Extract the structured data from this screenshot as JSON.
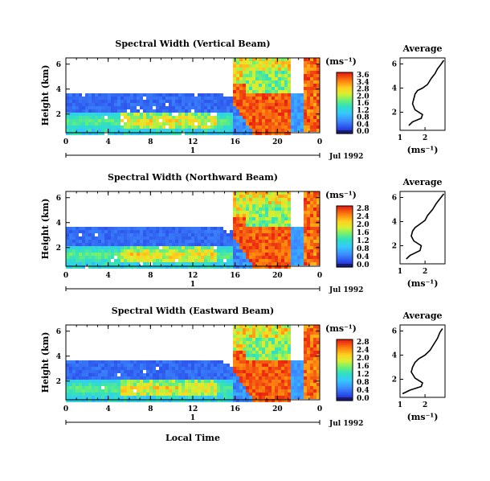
{
  "figure": {
    "xlabel": "Local Time",
    "date_label": "Jul 1992",
    "day_label": "1",
    "units_label": "(ms⁻¹)",
    "ylabel": "Height (km)",
    "avg_title": "Average",
    "avg_xlabel": "(ms⁻¹)"
  },
  "chart_data": [
    {
      "type": "heatmap",
      "title": "Spectral Width (Vertical Beam)",
      "x_ticks": [
        "0",
        "4",
        "8",
        "12",
        "16",
        "20",
        "0"
      ],
      "xlim": [
        0,
        24
      ],
      "y_ticks": [
        "2",
        "4",
        "6"
      ],
      "ylim": [
        0.5,
        6.5
      ],
      "colorbar": {
        "ticks": [
          "3.6",
          "3.4",
          "2.8",
          "2.0",
          "1.6",
          "1.2",
          "0.8",
          "0.4",
          "0.0"
        ],
        "range": [
          0,
          3.6
        ]
      },
      "average": {
        "title": "Average",
        "x_ticks": [
          "1",
          "2"
        ],
        "xlim": [
          1,
          2.8
        ],
        "x": [
          1.35,
          1.5,
          1.85,
          1.9,
          1.6,
          1.5,
          1.55,
          1.6,
          1.7,
          1.9,
          2.1,
          2.25,
          2.4,
          2.5,
          2.65,
          2.75
        ],
        "y": [
          0.9,
          1.2,
          1.5,
          1.8,
          2.2,
          2.7,
          3.1,
          3.5,
          3.8,
          4.0,
          4.3,
          4.8,
          5.2,
          5.6,
          6.0,
          6.3
        ]
      }
    },
    {
      "type": "heatmap",
      "title": "Spectral Width (Northward Beam)",
      "x_ticks": [
        "0",
        "4",
        "8",
        "12",
        "16",
        "20",
        "0"
      ],
      "xlim": [
        0,
        24
      ],
      "y_ticks": [
        "2",
        "4",
        "6"
      ],
      "ylim": [
        0.5,
        6.5
      ],
      "colorbar": {
        "ticks": [
          "2.8",
          "2.4",
          "2.0",
          "1.6",
          "1.2",
          "0.8",
          "0.4",
          "0.0"
        ],
        "range": [
          0,
          2.8
        ]
      },
      "average": {
        "title": "Average",
        "x_ticks": [
          "1",
          "2"
        ],
        "xlim": [
          1,
          2.8
        ],
        "x": [
          1.25,
          1.4,
          1.8,
          1.85,
          1.55,
          1.45,
          1.5,
          1.6,
          1.8,
          2.0,
          2.1,
          2.3,
          2.45,
          2.6,
          2.75
        ],
        "y": [
          0.9,
          1.2,
          1.6,
          2.0,
          2.4,
          2.8,
          3.2,
          3.5,
          3.8,
          4.1,
          4.5,
          5.0,
          5.5,
          5.9,
          6.3
        ]
      }
    },
    {
      "type": "heatmap",
      "title": "Spectral Width (Eastward Beam)",
      "x_ticks": [
        "0",
        "4",
        "8",
        "12",
        "16",
        "20",
        "0"
      ],
      "xlim": [
        0,
        24
      ],
      "y_ticks": [
        "2",
        "4",
        "6"
      ],
      "ylim": [
        0.5,
        6.5
      ],
      "colorbar": {
        "ticks": [
          "2.8",
          "2.4",
          "2.0",
          "1.6",
          "1.2",
          "0.8",
          "0.4",
          "0.0"
        ],
        "range": [
          0,
          2.8
        ]
      },
      "average": {
        "title": "Average",
        "x_ticks": [
          "1",
          "2"
        ],
        "xlim": [
          1,
          2.8
        ],
        "x": [
          1.1,
          1.4,
          1.85,
          1.9,
          1.6,
          1.45,
          1.5,
          1.6,
          1.75,
          2.0,
          2.2,
          2.35,
          2.5,
          2.6,
          2.7
        ],
        "y": [
          0.8,
          1.1,
          1.4,
          1.7,
          2.1,
          2.6,
          3.0,
          3.4,
          3.7,
          4.0,
          4.4,
          4.9,
          5.4,
          5.9,
          6.2
        ]
      }
    }
  ]
}
